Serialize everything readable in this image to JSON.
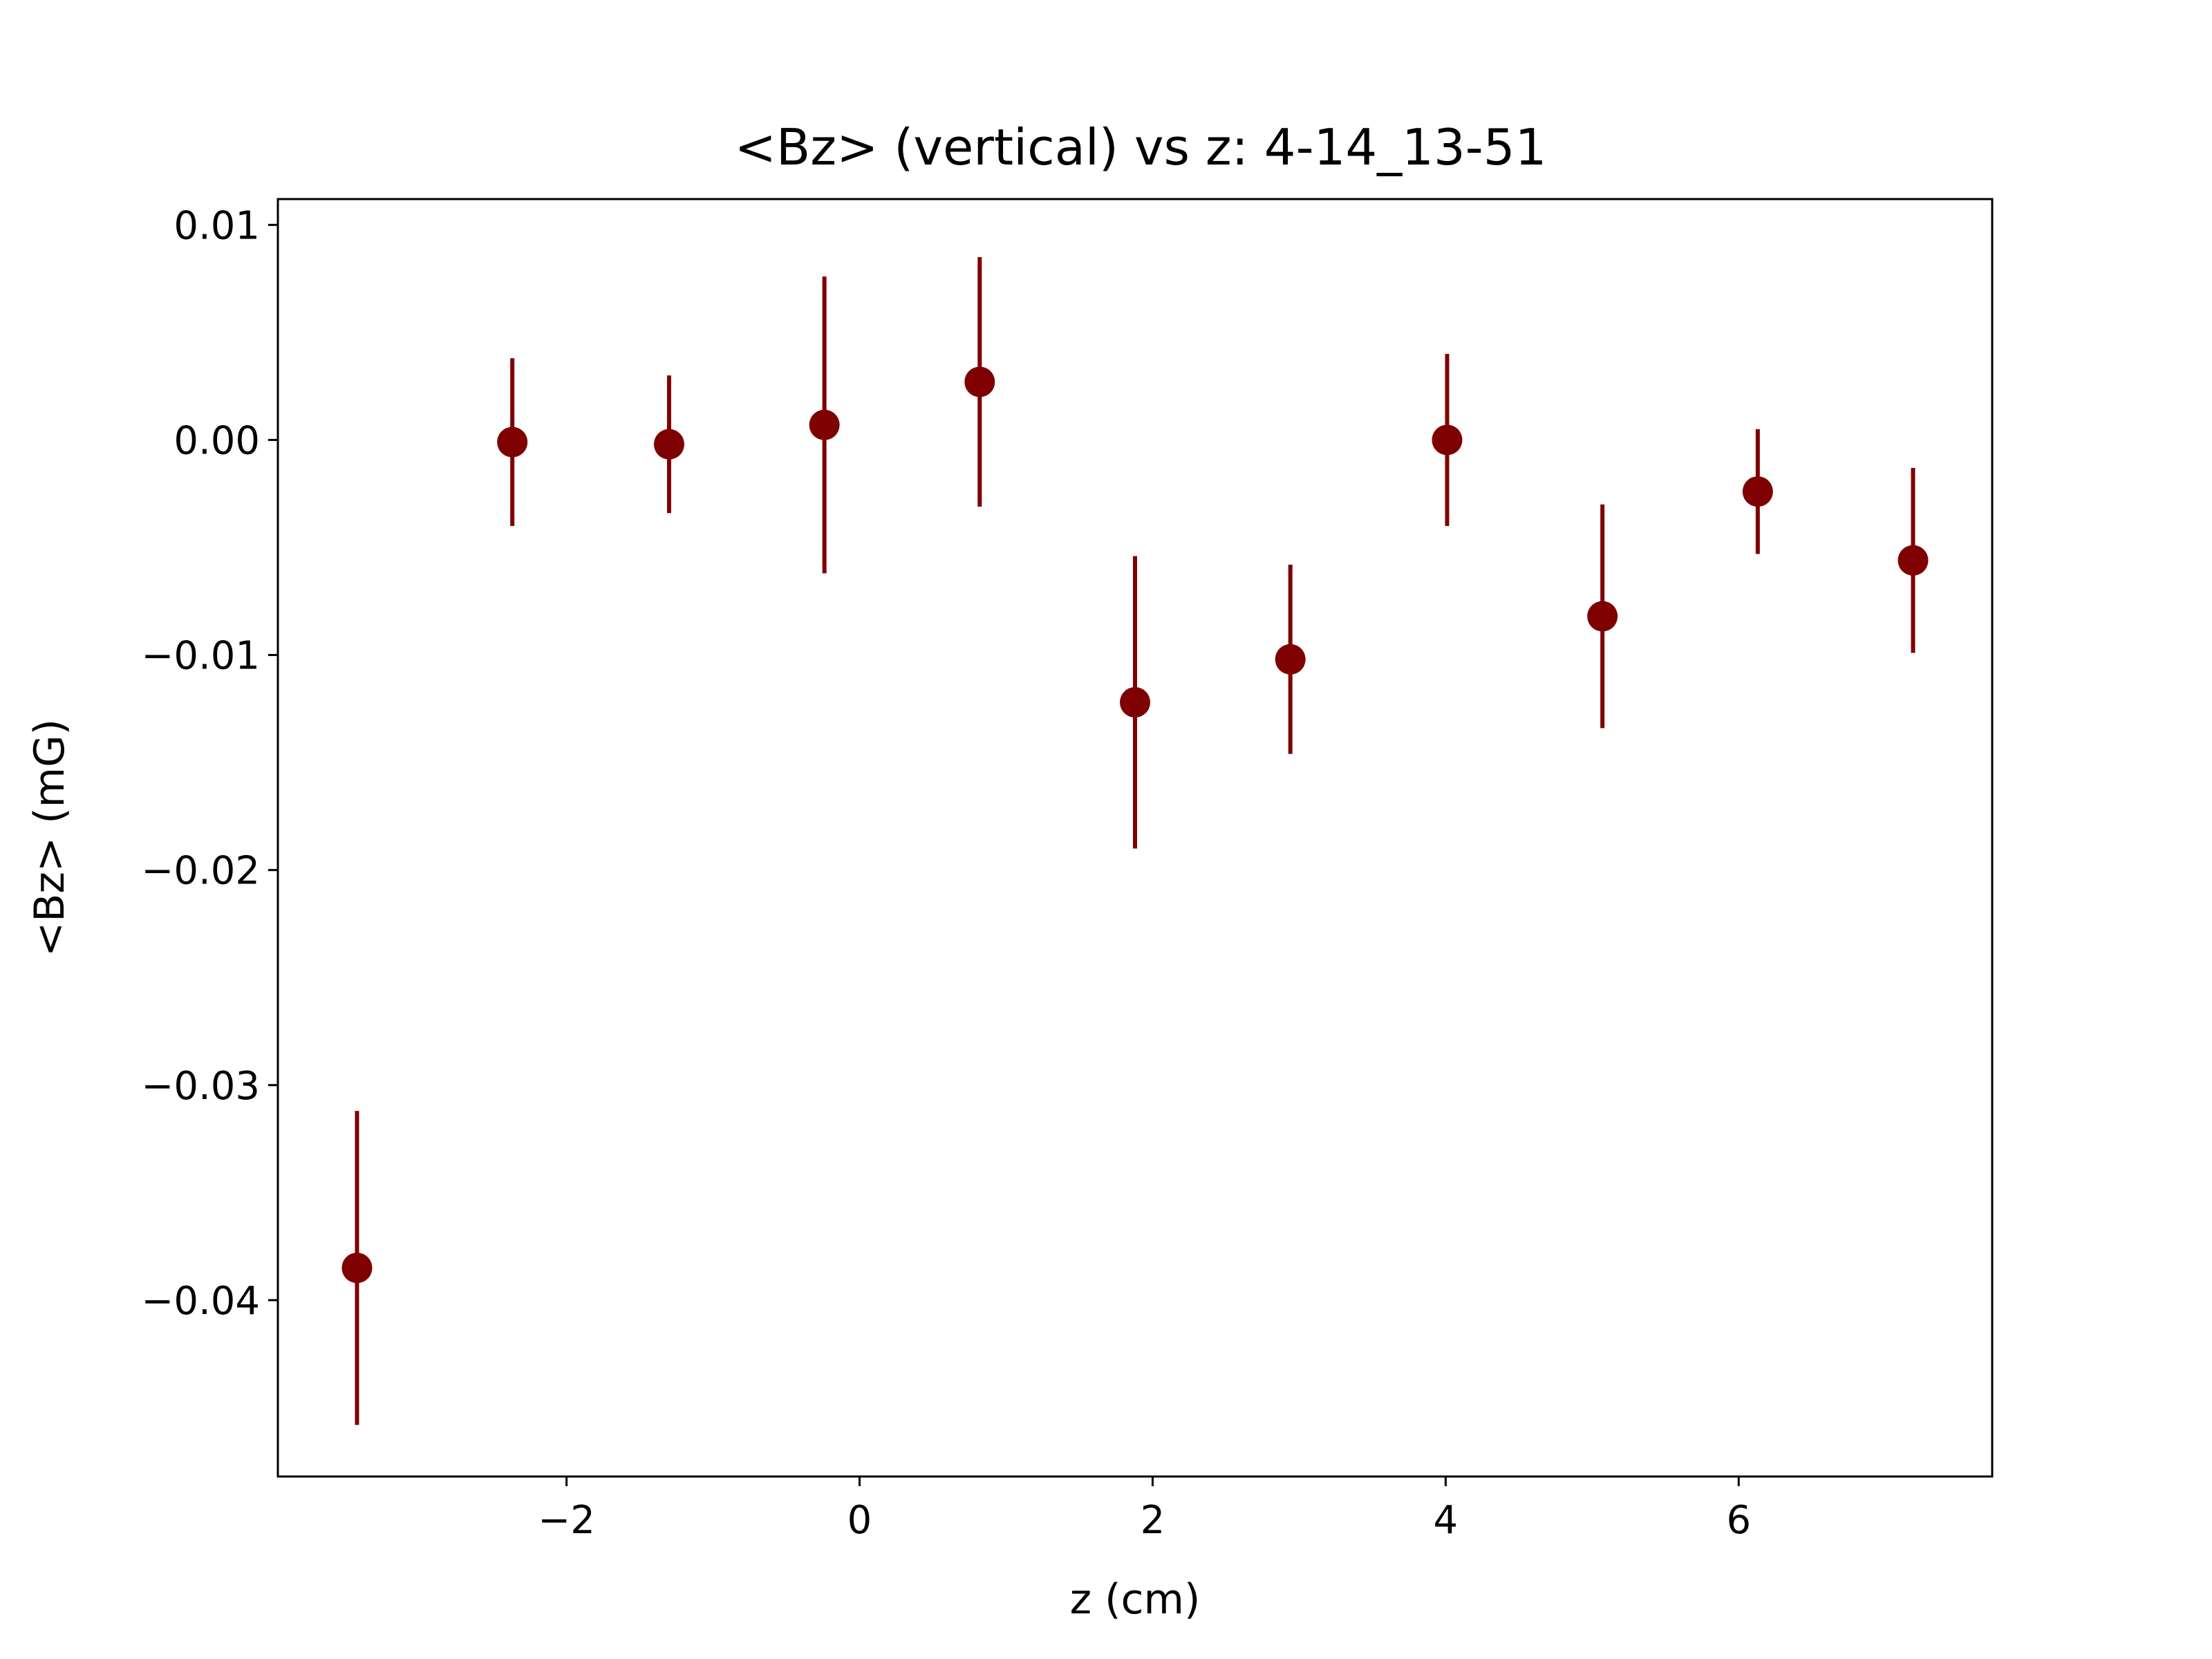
{
  "chart_data": {
    "type": "scatter",
    "title": "<Bz> (vertical) vs z: 4-14_13-51",
    "xlabel": "z (cm)",
    "ylabel": "<Bz> (mG)",
    "xlim": [
      -3.97,
      7.73
    ],
    "ylim": [
      -0.0482,
      0.0112
    ],
    "grid": false,
    "xticks": [
      {
        "value": -2,
        "label": "−2"
      },
      {
        "value": 0,
        "label": "0"
      },
      {
        "value": 2,
        "label": "2"
      },
      {
        "value": 4,
        "label": "4"
      },
      {
        "value": 6,
        "label": "6"
      }
    ],
    "yticks": [
      {
        "value": 0.01,
        "label": "0.01"
      },
      {
        "value": 0.0,
        "label": "0.00"
      },
      {
        "value": -0.01,
        "label": "−0.01"
      },
      {
        "value": -0.02,
        "label": "−0.02"
      },
      {
        "value": -0.03,
        "label": "−0.03"
      },
      {
        "value": -0.04,
        "label": "−0.04"
      }
    ],
    "series": [
      {
        "marker_color": "#7f0000",
        "points": [
          {
            "x": -3.43,
            "y": -0.0385,
            "err": 0.0073
          },
          {
            "x": -2.37,
            "y": -0.0001,
            "err": 0.0039
          },
          {
            "x": -1.3,
            "y": -0.0002,
            "err": 0.0032
          },
          {
            "x": -0.24,
            "y": 0.0007,
            "err": 0.0069
          },
          {
            "x": 0.82,
            "y": 0.0027,
            "err": 0.0058
          },
          {
            "x": 1.88,
            "y": -0.0122,
            "err": 0.0068
          },
          {
            "x": 2.94,
            "y": -0.0102,
            "err": 0.0044
          },
          {
            "x": 4.01,
            "y": 0.0,
            "err": 0.004
          },
          {
            "x": 5.07,
            "y": -0.0082,
            "err": 0.0052
          },
          {
            "x": 6.13,
            "y": -0.0024,
            "err": 0.0029
          },
          {
            "x": 7.19,
            "y": -0.0056,
            "err": 0.0043
          }
        ]
      }
    ]
  }
}
